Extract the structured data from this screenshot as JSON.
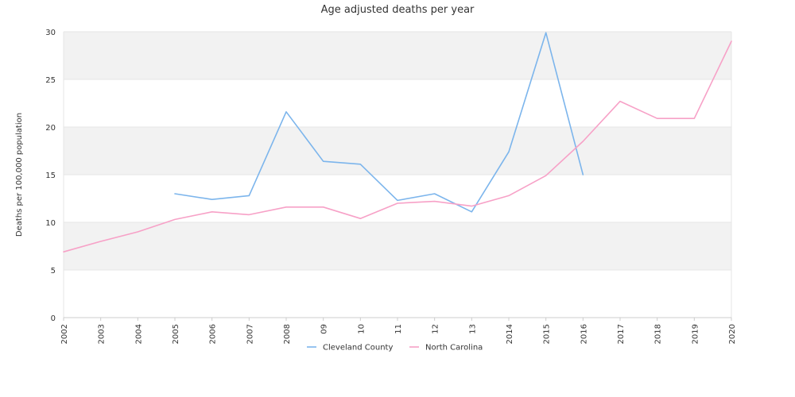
{
  "chart_data": {
    "type": "line",
    "title": "Age adjusted deaths per year",
    "xlabel": "",
    "ylabel": "Deaths per 100,000 population",
    "categories": [
      "2002",
      "2003",
      "2004",
      "2005",
      "2006",
      "2007",
      "2008",
      "09",
      "10",
      "11",
      "12",
      "13",
      "2014",
      "2015",
      "2016",
      "2017",
      "2018",
      "2019",
      "2020"
    ],
    "ylim": [
      0,
      30
    ],
    "yticks": [
      0,
      5,
      10,
      15,
      20,
      25,
      30
    ],
    "grid": "alternating horizontal bands",
    "legend_position": "bottom",
    "series": [
      {
        "name": "Cleveland County",
        "color": "#7cb5ec",
        "values": [
          null,
          null,
          null,
          13.0,
          12.4,
          12.8,
          21.6,
          16.4,
          16.1,
          12.3,
          13.0,
          11.1,
          17.4,
          29.9,
          15.0,
          null,
          null,
          null,
          null
        ]
      },
      {
        "name": "North Carolina",
        "color": "#f7a1c7",
        "values": [
          6.9,
          8.0,
          9.0,
          10.3,
          11.1,
          10.8,
          11.6,
          11.6,
          10.4,
          12.0,
          12.2,
          11.7,
          12.8,
          14.9,
          18.5,
          22.7,
          20.9,
          20.9,
          29.0
        ]
      }
    ]
  },
  "colors": {
    "band": "#f2f2f2",
    "gridline": "#e6e6e6",
    "axis": "#cccccc"
  }
}
